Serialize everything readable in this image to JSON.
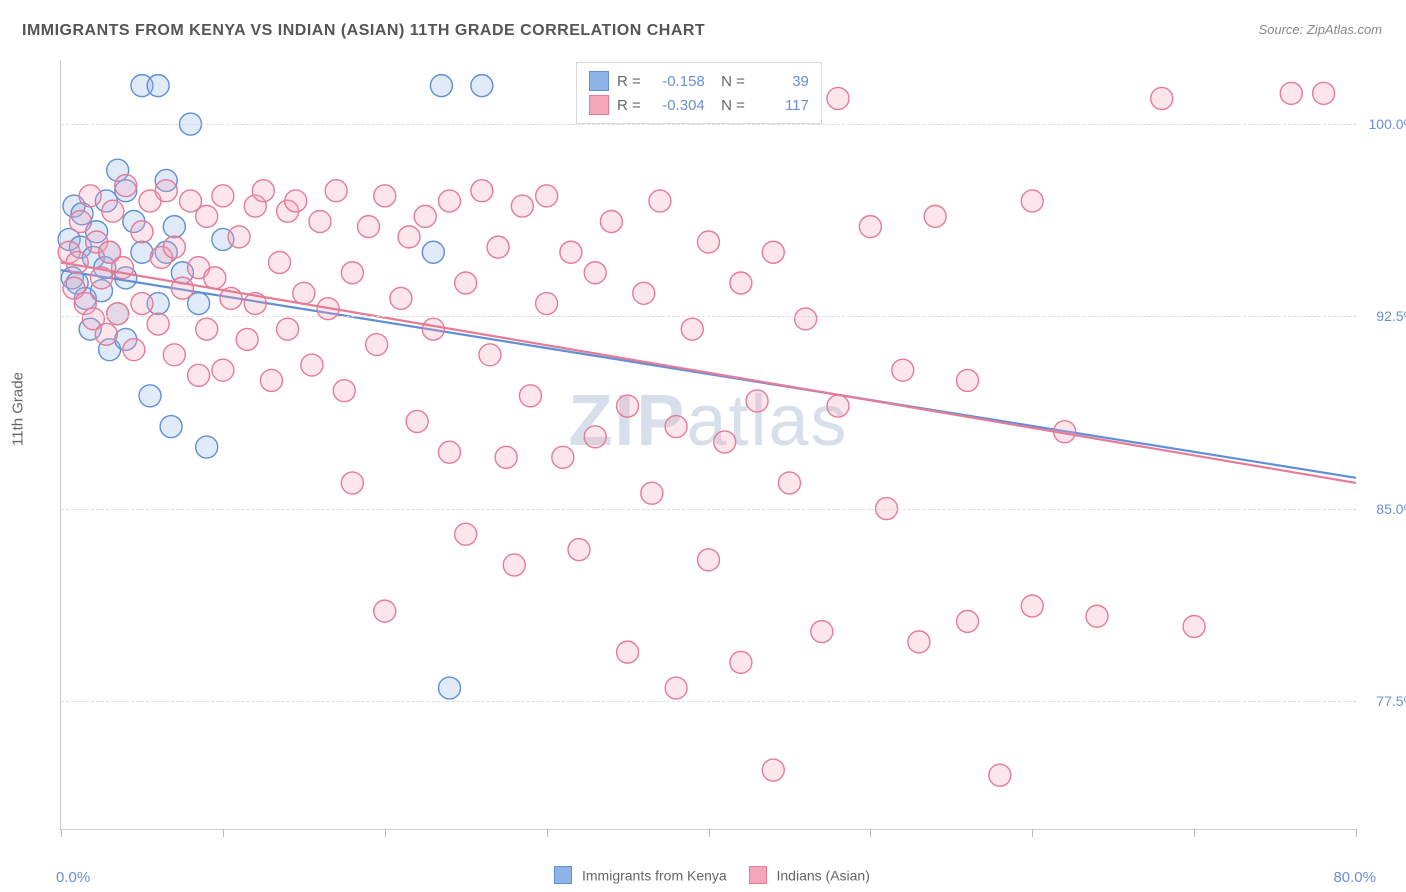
{
  "title": "IMMIGRANTS FROM KENYA VS INDIAN (ASIAN) 11TH GRADE CORRELATION CHART",
  "source": "Source: ZipAtlas.com",
  "yaxis_title": "11th Grade",
  "watermark": {
    "bold": "ZIP",
    "rest": "atlas"
  },
  "chart": {
    "type": "scatter",
    "xlim": [
      0,
      80
    ],
    "ylim": [
      72.5,
      102.5
    ],
    "x_tick_positions": [
      0,
      10,
      20,
      30,
      40,
      50,
      60,
      70,
      80
    ],
    "x_tick_labels_shown": {
      "min": "0.0%",
      "max": "80.0%"
    },
    "y_ticks": [
      {
        "v": 77.5,
        "label": "77.5%"
      },
      {
        "v": 85.0,
        "label": "85.0%"
      },
      {
        "v": 92.5,
        "label": "92.5%"
      },
      {
        "v": 100.0,
        "label": "100.0%"
      }
    ],
    "background_color": "#ffffff",
    "grid_color": "#dcdcdc",
    "marker_radius": 11,
    "marker_fill_opacity": 0.28,
    "marker_stroke_width": 1.4,
    "line_width": 2.2,
    "series": [
      {
        "name": "Immigrants from Kenya",
        "color_fill": "#8fb3e6",
        "color_stroke": "#5f8fd6",
        "stats": {
          "R": "-0.158",
          "N": "39"
        },
        "trend": {
          "x1": 0,
          "y1": 94.3,
          "x2": 80,
          "y2": 86.2
        },
        "points": [
          [
            0.5,
            95.5
          ],
          [
            0.7,
            94.0
          ],
          [
            0.8,
            96.8
          ],
          [
            1.0,
            93.8
          ],
          [
            1.2,
            95.2
          ],
          [
            1.3,
            96.5
          ],
          [
            1.5,
            93.2
          ],
          [
            1.8,
            92.0
          ],
          [
            2.0,
            94.8
          ],
          [
            2.2,
            95.8
          ],
          [
            2.5,
            93.5
          ],
          [
            2.7,
            94.4
          ],
          [
            3.0,
            91.2
          ],
          [
            3.0,
            95.0
          ],
          [
            3.5,
            92.6
          ],
          [
            4.0,
            94.0
          ],
          [
            4.0,
            91.6
          ],
          [
            4.5,
            96.2
          ],
          [
            5.0,
            101.5
          ],
          [
            5.0,
            95.0
          ],
          [
            5.5,
            89.4
          ],
          [
            6.0,
            101.5
          ],
          [
            6.0,
            93.0
          ],
          [
            6.5,
            97.8
          ],
          [
            6.5,
            95.0
          ],
          [
            6.8,
            88.2
          ],
          [
            7.0,
            96.0
          ],
          [
            7.5,
            94.2
          ],
          [
            8.0,
            100.0
          ],
          [
            8.5,
            93.0
          ],
          [
            9.0,
            87.4
          ],
          [
            10.0,
            95.5
          ],
          [
            23.0,
            95.0
          ],
          [
            23.5,
            101.5
          ],
          [
            24.0,
            78.0
          ],
          [
            26.0,
            101.5
          ],
          [
            4.0,
            97.4
          ],
          [
            3.5,
            98.2
          ],
          [
            2.8,
            97.0
          ]
        ]
      },
      {
        "name": "Indians (Asian)",
        "color_fill": "#f4a6ba",
        "color_stroke": "#e57b97",
        "stats": {
          "R": "-0.304",
          "N": "117"
        },
        "trend": {
          "x1": 0,
          "y1": 94.6,
          "x2": 80,
          "y2": 86.0
        },
        "points": [
          [
            0.5,
            95.0
          ],
          [
            0.8,
            93.6
          ],
          [
            1.0,
            94.6
          ],
          [
            1.2,
            96.2
          ],
          [
            1.5,
            93.0
          ],
          [
            1.8,
            97.2
          ],
          [
            2.0,
            92.4
          ],
          [
            2.2,
            95.4
          ],
          [
            2.5,
            94.0
          ],
          [
            2.8,
            91.8
          ],
          [
            3.0,
            95.0
          ],
          [
            3.2,
            96.6
          ],
          [
            3.5,
            92.6
          ],
          [
            3.8,
            94.4
          ],
          [
            4.0,
            97.6
          ],
          [
            4.5,
            91.2
          ],
          [
            5.0,
            95.8
          ],
          [
            5.0,
            93.0
          ],
          [
            5.5,
            97.0
          ],
          [
            6.0,
            92.2
          ],
          [
            6.2,
            94.8
          ],
          [
            6.5,
            97.4
          ],
          [
            7.0,
            91.0
          ],
          [
            7.0,
            95.2
          ],
          [
            7.5,
            93.6
          ],
          [
            8.0,
            97.0
          ],
          [
            8.5,
            90.2
          ],
          [
            8.5,
            94.4
          ],
          [
            9.0,
            96.4
          ],
          [
            9.0,
            92.0
          ],
          [
            9.5,
            94.0
          ],
          [
            10.0,
            97.2
          ],
          [
            10.0,
            90.4
          ],
          [
            10.5,
            93.2
          ],
          [
            11.0,
            95.6
          ],
          [
            11.5,
            91.6
          ],
          [
            12.0,
            96.8
          ],
          [
            12.0,
            93.0
          ],
          [
            12.5,
            97.4
          ],
          [
            13.0,
            90.0
          ],
          [
            13.5,
            94.6
          ],
          [
            14.0,
            96.6
          ],
          [
            14.0,
            92.0
          ],
          [
            14.5,
            97.0
          ],
          [
            15.0,
            93.4
          ],
          [
            15.5,
            90.6
          ],
          [
            16.0,
            96.2
          ],
          [
            16.5,
            92.8
          ],
          [
            17.0,
            97.4
          ],
          [
            17.5,
            89.6
          ],
          [
            18.0,
            94.2
          ],
          [
            18.0,
            86.0
          ],
          [
            19.0,
            96.0
          ],
          [
            19.5,
            91.4
          ],
          [
            20.0,
            97.2
          ],
          [
            20.0,
            81.0
          ],
          [
            21.0,
            93.2
          ],
          [
            21.5,
            95.6
          ],
          [
            22.0,
            88.4
          ],
          [
            22.5,
            96.4
          ],
          [
            23.0,
            92.0
          ],
          [
            24.0,
            97.0
          ],
          [
            24.0,
            87.2
          ],
          [
            25.0,
            93.8
          ],
          [
            25.0,
            84.0
          ],
          [
            26.0,
            97.4
          ],
          [
            26.5,
            91.0
          ],
          [
            27.0,
            95.2
          ],
          [
            27.5,
            87.0
          ],
          [
            28.0,
            82.8
          ],
          [
            28.5,
            96.8
          ],
          [
            29.0,
            89.4
          ],
          [
            30.0,
            93.0
          ],
          [
            30.0,
            97.2
          ],
          [
            31.0,
            87.0
          ],
          [
            31.5,
            95.0
          ],
          [
            32.0,
            83.4
          ],
          [
            33.0,
            94.2
          ],
          [
            33.0,
            87.8
          ],
          [
            34.0,
            96.2
          ],
          [
            35.0,
            89.0
          ],
          [
            35.0,
            79.4
          ],
          [
            36.0,
            93.4
          ],
          [
            36.5,
            85.6
          ],
          [
            37.0,
            97.0
          ],
          [
            38.0,
            88.2
          ],
          [
            38.0,
            78.0
          ],
          [
            39.0,
            92.0
          ],
          [
            40.0,
            95.4
          ],
          [
            40.0,
            83.0
          ],
          [
            41.0,
            87.6
          ],
          [
            42.0,
            93.8
          ],
          [
            42.0,
            79.0
          ],
          [
            43.0,
            89.2
          ],
          [
            44.0,
            95.0
          ],
          [
            44.0,
            74.8
          ],
          [
            45.0,
            86.0
          ],
          [
            46.0,
            92.4
          ],
          [
            47.0,
            80.2
          ],
          [
            48.0,
            89.0
          ],
          [
            48.0,
            101.0
          ],
          [
            50.0,
            96.0
          ],
          [
            51.0,
            85.0
          ],
          [
            52.0,
            90.4
          ],
          [
            53.0,
            79.8
          ],
          [
            54.0,
            96.4
          ],
          [
            56.0,
            80.6
          ],
          [
            56.0,
            90.0
          ],
          [
            58.0,
            74.6
          ],
          [
            60.0,
            97.0
          ],
          [
            60.0,
            81.2
          ],
          [
            62.0,
            88.0
          ],
          [
            64.0,
            80.8
          ],
          [
            68.0,
            101.0
          ],
          [
            70.0,
            80.4
          ],
          [
            76.0,
            101.2
          ],
          [
            78.0,
            101.2
          ]
        ]
      }
    ],
    "legend_bottom": [
      {
        "label": "Immigrants from Kenya",
        "fill": "#8fb3e6",
        "stroke": "#5f8fd6"
      },
      {
        "label": "Indians (Asian)",
        "fill": "#f4a6ba",
        "stroke": "#e57b97"
      }
    ]
  }
}
